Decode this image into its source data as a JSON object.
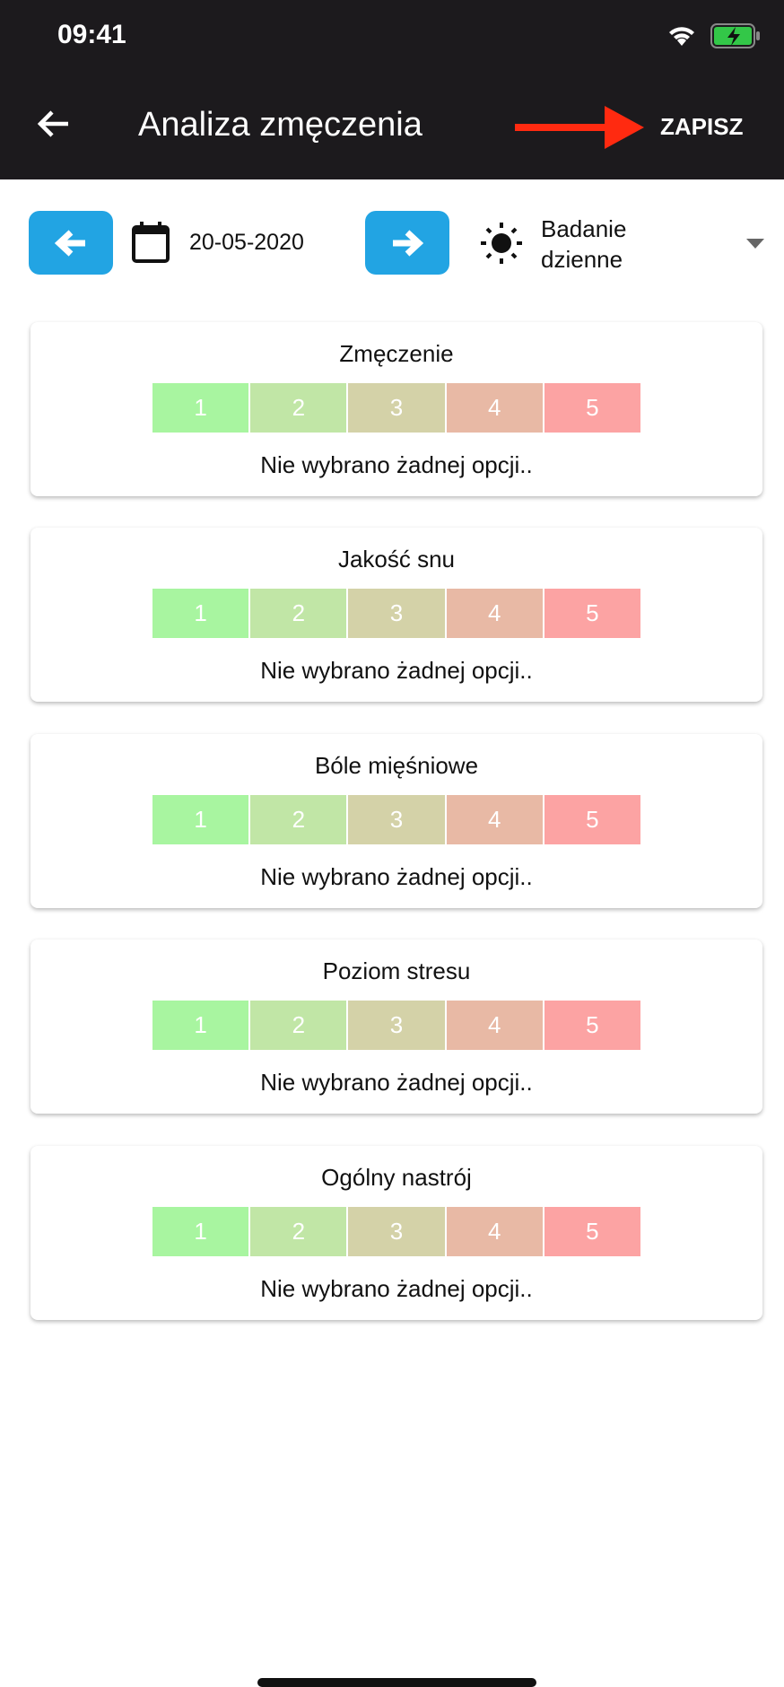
{
  "status_bar": {
    "time": "09:41",
    "icons": [
      "wifi-icon",
      "battery-charging-icon"
    ]
  },
  "header": {
    "title": "Analiza zmęczenia",
    "save_label": "ZAPISZ",
    "back_icon": "arrow-left-icon",
    "annotation_color": "#ff2a10"
  },
  "controls": {
    "date": "20-05-2020",
    "mode_line1": "Badanie",
    "mode_line2": "dzienne",
    "accent": "#22a4e3"
  },
  "scale": {
    "labels": [
      "1",
      "2",
      "3",
      "4",
      "5"
    ],
    "colors": [
      "#a8f5a0",
      "#c1e6a6",
      "#d4d2a8",
      "#e8b9a5",
      "#fca3a3"
    ]
  },
  "cards": [
    {
      "title": "Zmęczenie",
      "status": "Nie wybrano żadnej opcji.."
    },
    {
      "title": "Jakość snu",
      "status": "Nie wybrano żadnej opcji.."
    },
    {
      "title": "Bóle mięśniowe",
      "status": "Nie wybrano żadnej opcji.."
    },
    {
      "title": "Poziom stresu",
      "status": "Nie wybrano żadnej opcji.."
    },
    {
      "title": "Ogólny nastrój",
      "status": "Nie wybrano żadnej opcji.."
    }
  ]
}
